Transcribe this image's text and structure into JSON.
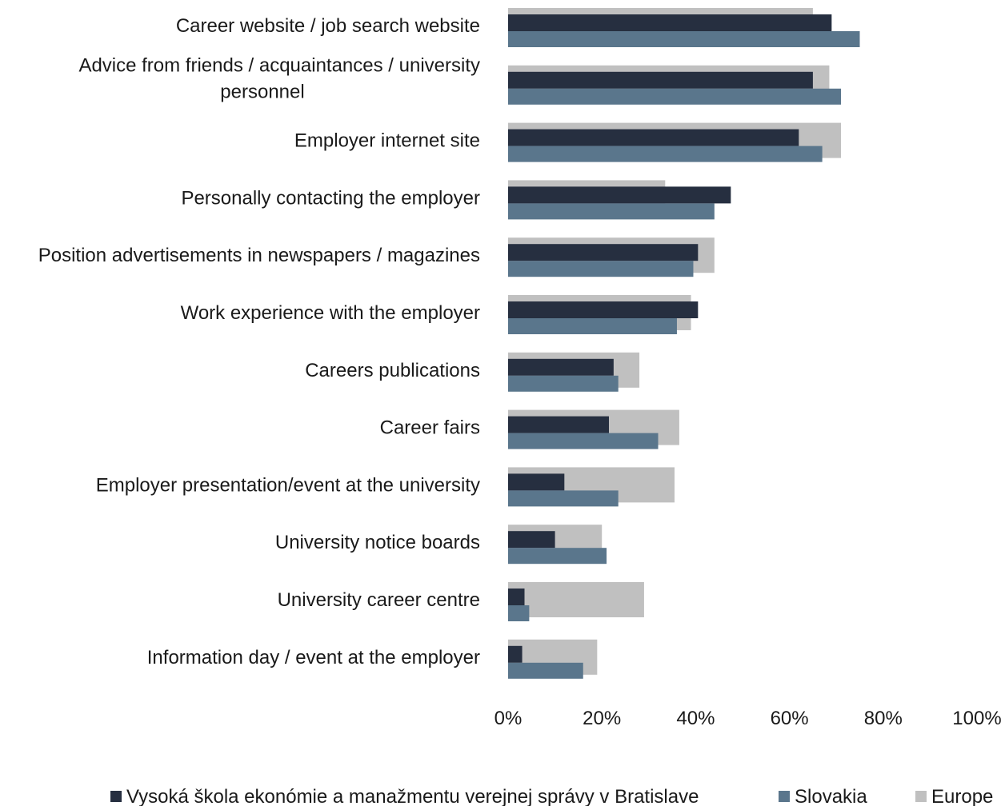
{
  "chart_data": {
    "type": "bar",
    "orientation": "horizontal",
    "categories": [
      "Career website / job search website",
      "Advice from friends / acquaintances / university personnel",
      "Employer internet site",
      "Personally contacting the employer",
      "Position advertisements in newspapers / magazines",
      "Work experience with the employer",
      "Careers publications",
      "Career fairs",
      "Employer presentation/event at the university",
      "University notice boards",
      "University career centre",
      "Information day / event at the employer"
    ],
    "category_lines": [
      [
        "Career website / job search website"
      ],
      [
        "Advice from friends / acquaintances / university",
        "personnel"
      ],
      [
        "Employer internet site"
      ],
      [
        "Personally contacting the employer"
      ],
      [
        "Position advertisements in newspapers / magazines"
      ],
      [
        "Work experience with the employer"
      ],
      [
        "Careers publications"
      ],
      [
        "Career fairs"
      ],
      [
        "Employer presentation/event at the university"
      ],
      [
        "University notice boards"
      ],
      [
        "University career centre"
      ],
      [
        "Information day / event at the employer"
      ]
    ],
    "series": [
      {
        "name": "Vysoká škola ekonómie a manažmentu verejnej správy v Bratislave",
        "color": "#262f40",
        "values": [
          69,
          65,
          62,
          47.5,
          40.5,
          40.5,
          22.5,
          21.5,
          12,
          10,
          3.5,
          3
        ]
      },
      {
        "name": "Slovakia",
        "color": "#5a768c",
        "values": [
          75,
          71,
          67,
          44,
          39.5,
          36,
          23.5,
          32,
          23.5,
          21,
          4.5,
          16
        ]
      },
      {
        "name": "Europe",
        "color": "#c0c0c0",
        "values": [
          65,
          68.5,
          71,
          33.5,
          44,
          39,
          28,
          36.5,
          35.5,
          20,
          29,
          19
        ]
      }
    ],
    "xlim": [
      0,
      100
    ],
    "xticks": [
      0,
      20,
      40,
      60,
      80,
      100
    ],
    "xtick_labels": [
      "0%",
      "20%",
      "40%",
      "60%",
      "80%",
      "100%"
    ],
    "title": "",
    "xlabel": "",
    "ylabel": "",
    "grid": false,
    "legend_position": "bottom"
  }
}
